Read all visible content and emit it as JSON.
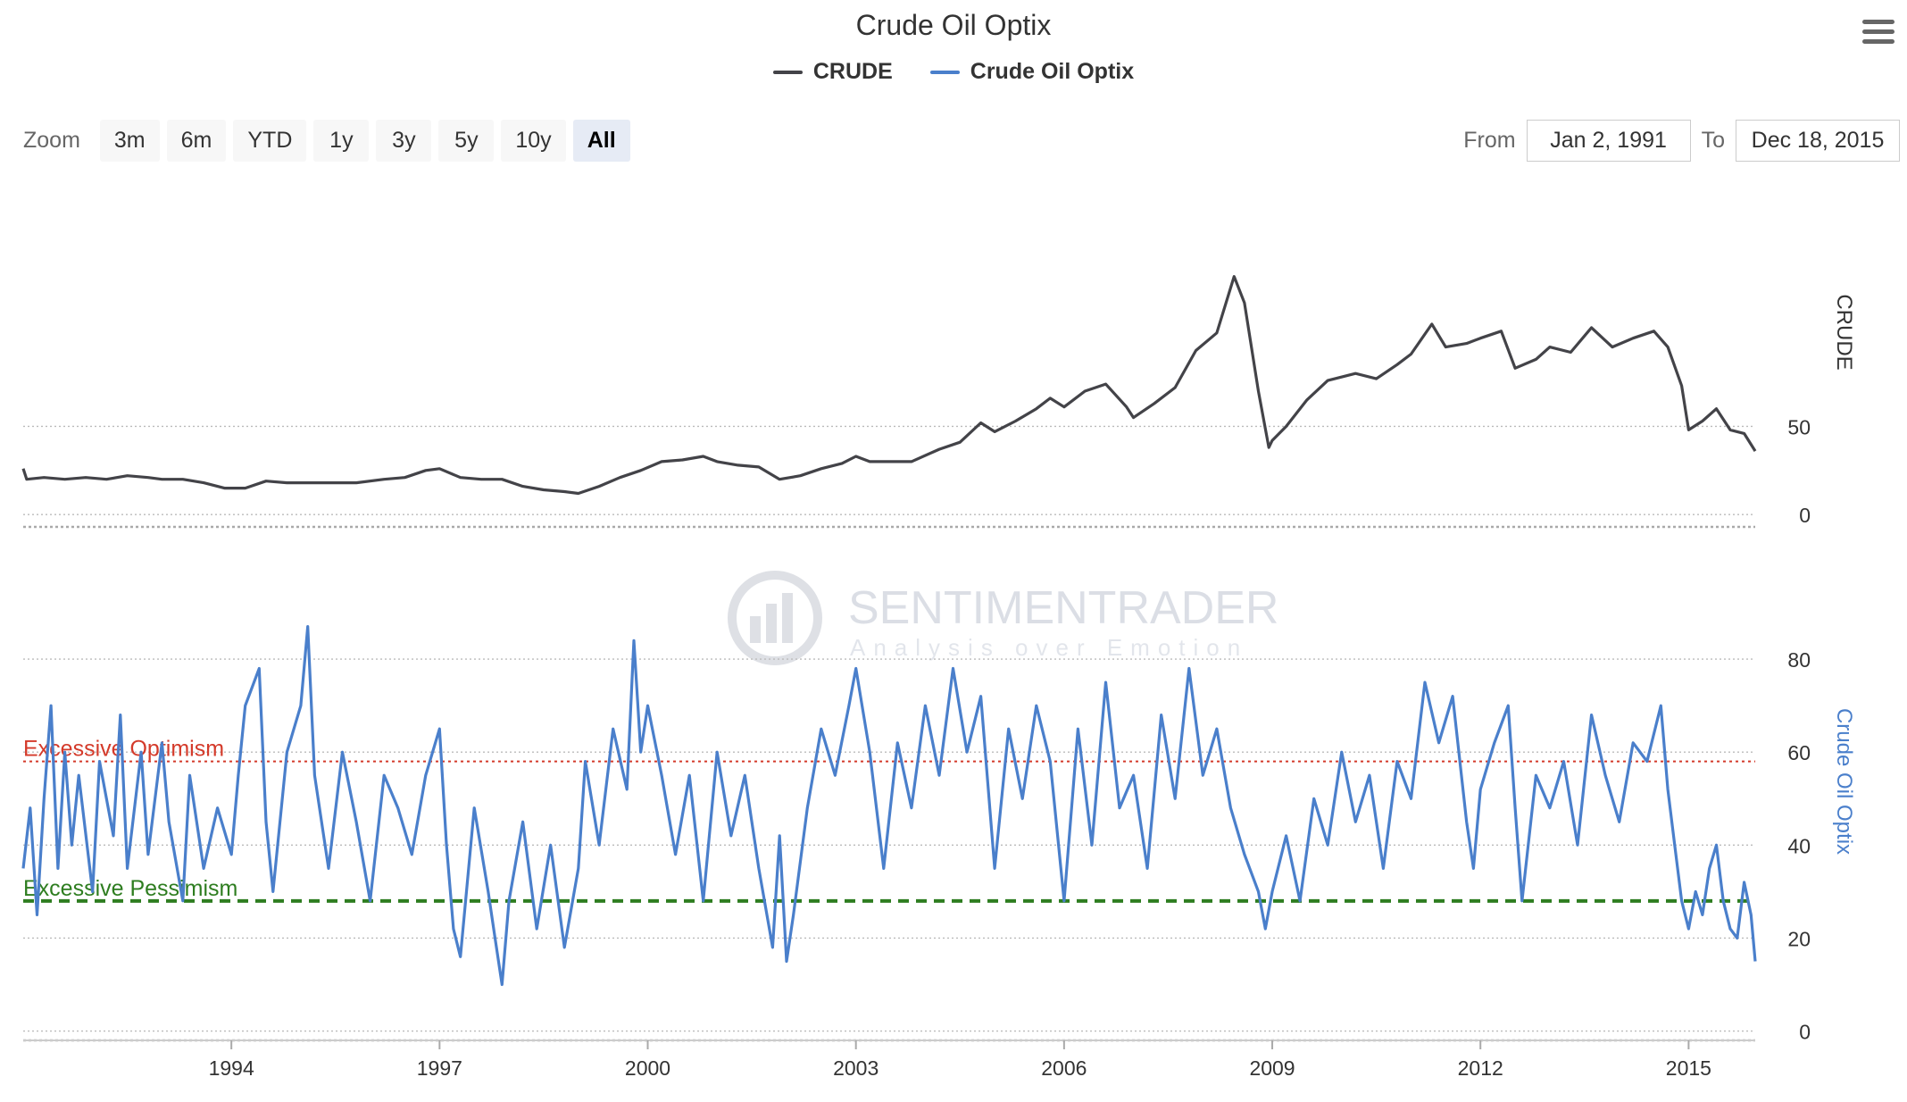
{
  "chart": {
    "title": "Crude Oil Optix",
    "menu_icon": "hamburger-menu-icon"
  },
  "legend": [
    {
      "name": "CRUDE",
      "color": "#434348"
    },
    {
      "name": "Crude Oil Optix",
      "color": "#4a7fcb"
    }
  ],
  "zoom": {
    "label": "Zoom",
    "buttons": [
      "3m",
      "6m",
      "YTD",
      "1y",
      "3y",
      "5y",
      "10y",
      "All"
    ],
    "active": "All"
  },
  "range": {
    "from_label": "From",
    "from_value": "Jan 2, 1991",
    "to_label": "To",
    "to_value": "Dec 18, 2015"
  },
  "watermark": {
    "line1": "SENTIMENTRADER",
    "line2": "Analysis over Emotion"
  },
  "chart_data": [
    {
      "type": "line",
      "series": [
        {
          "name": "CRUDE",
          "color": "#434348"
        }
      ],
      "ylabel": "CRUDE",
      "y_ticks": [
        0,
        50
      ],
      "ylim": [
        -7,
        150
      ],
      "points": [
        [
          1991.0,
          26
        ],
        [
          1991.05,
          20
        ],
        [
          1991.3,
          21
        ],
        [
          1991.6,
          20
        ],
        [
          1991.9,
          21
        ],
        [
          1992.2,
          20
        ],
        [
          1992.5,
          22
        ],
        [
          1992.8,
          21
        ],
        [
          1993.0,
          20
        ],
        [
          1993.3,
          20
        ],
        [
          1993.6,
          18
        ],
        [
          1993.9,
          15
        ],
        [
          1994.2,
          15
        ],
        [
          1994.5,
          19
        ],
        [
          1994.8,
          18
        ],
        [
          1995.2,
          18
        ],
        [
          1995.5,
          18
        ],
        [
          1995.8,
          18
        ],
        [
          1996.2,
          20
        ],
        [
          1996.5,
          21
        ],
        [
          1996.8,
          25
        ],
        [
          1997.0,
          26
        ],
        [
          1997.3,
          21
        ],
        [
          1997.6,
          20
        ],
        [
          1997.9,
          20
        ],
        [
          1998.2,
          16
        ],
        [
          1998.5,
          14
        ],
        [
          1998.8,
          13
        ],
        [
          1999.0,
          12
        ],
        [
          1999.3,
          16
        ],
        [
          1999.6,
          21
        ],
        [
          1999.9,
          25
        ],
        [
          2000.2,
          30
        ],
        [
          2000.5,
          31
        ],
        [
          2000.8,
          33
        ],
        [
          2001.0,
          30
        ],
        [
          2001.3,
          28
        ],
        [
          2001.6,
          27
        ],
        [
          2001.9,
          20
        ],
        [
          2002.2,
          22
        ],
        [
          2002.5,
          26
        ],
        [
          2002.8,
          29
        ],
        [
          2003.0,
          33
        ],
        [
          2003.2,
          30
        ],
        [
          2003.5,
          30
        ],
        [
          2003.8,
          30
        ],
        [
          2004.2,
          37
        ],
        [
          2004.5,
          41
        ],
        [
          2004.8,
          52
        ],
        [
          2005.0,
          47
        ],
        [
          2005.3,
          53
        ],
        [
          2005.6,
          60
        ],
        [
          2005.8,
          66
        ],
        [
          2006.0,
          61
        ],
        [
          2006.3,
          70
        ],
        [
          2006.6,
          74
        ],
        [
          2006.9,
          61
        ],
        [
          2007.0,
          55
        ],
        [
          2007.3,
          63
        ],
        [
          2007.6,
          72
        ],
        [
          2007.9,
          93
        ],
        [
          2008.2,
          103
        ],
        [
          2008.45,
          135
        ],
        [
          2008.6,
          120
        ],
        [
          2008.8,
          70
        ],
        [
          2008.95,
          38
        ],
        [
          2009.0,
          42
        ],
        [
          2009.2,
          50
        ],
        [
          2009.5,
          65
        ],
        [
          2009.8,
          76
        ],
        [
          2010.2,
          80
        ],
        [
          2010.5,
          77
        ],
        [
          2010.8,
          85
        ],
        [
          2011.0,
          91
        ],
        [
          2011.3,
          108
        ],
        [
          2011.5,
          95
        ],
        [
          2011.8,
          97
        ],
        [
          2012.0,
          100
        ],
        [
          2012.3,
          104
        ],
        [
          2012.5,
          83
        ],
        [
          2012.8,
          88
        ],
        [
          2013.0,
          95
        ],
        [
          2013.3,
          92
        ],
        [
          2013.6,
          106
        ],
        [
          2013.9,
          95
        ],
        [
          2014.2,
          100
        ],
        [
          2014.5,
          104
        ],
        [
          2014.7,
          95
        ],
        [
          2014.9,
          73
        ],
        [
          2015.0,
          48
        ],
        [
          2015.2,
          53
        ],
        [
          2015.4,
          60
        ],
        [
          2015.6,
          48
        ],
        [
          2015.8,
          46
        ],
        [
          2015.96,
          36
        ]
      ]
    },
    {
      "type": "line",
      "series": [
        {
          "name": "Crude Oil Optix",
          "color": "#4a7fcb"
        }
      ],
      "ylabel": "Crude Oil Optix",
      "y_ticks": [
        0,
        20,
        40,
        60,
        80
      ],
      "ylim": [
        -2,
        95
      ],
      "annotations": [
        {
          "label": "Excessive Optimism",
          "value": 58,
          "color": "#d43a2a"
        },
        {
          "label": "Excessive Pessimism",
          "value": 28,
          "color": "#2e7d20"
        }
      ],
      "points": [
        [
          1991.0,
          35
        ],
        [
          1991.1,
          48
        ],
        [
          1991.2,
          25
        ],
        [
          1991.3,
          50
        ],
        [
          1991.4,
          70
        ],
        [
          1991.5,
          35
        ],
        [
          1991.6,
          60
        ],
        [
          1991.7,
          40
        ],
        [
          1991.8,
          55
        ],
        [
          1992.0,
          30
        ],
        [
          1992.1,
          58
        ],
        [
          1992.3,
          42
        ],
        [
          1992.4,
          68
        ],
        [
          1992.5,
          35
        ],
        [
          1992.7,
          60
        ],
        [
          1992.8,
          38
        ],
        [
          1993.0,
          62
        ],
        [
          1993.1,
          45
        ],
        [
          1993.3,
          28
        ],
        [
          1993.4,
          55
        ],
        [
          1993.6,
          35
        ],
        [
          1993.8,
          48
        ],
        [
          1994.0,
          38
        ],
        [
          1994.1,
          55
        ],
        [
          1994.2,
          70
        ],
        [
          1994.4,
          78
        ],
        [
          1994.5,
          45
        ],
        [
          1994.6,
          30
        ],
        [
          1994.8,
          60
        ],
        [
          1995.0,
          70
        ],
        [
          1995.1,
          87
        ],
        [
          1995.2,
          55
        ],
        [
          1995.4,
          35
        ],
        [
          1995.6,
          60
        ],
        [
          1995.8,
          45
        ],
        [
          1996.0,
          28
        ],
        [
          1996.2,
          55
        ],
        [
          1996.4,
          48
        ],
        [
          1996.6,
          38
        ],
        [
          1996.8,
          55
        ],
        [
          1997.0,
          65
        ],
        [
          1997.1,
          40
        ],
        [
          1997.2,
          22
        ],
        [
          1997.3,
          16
        ],
        [
          1997.5,
          48
        ],
        [
          1997.7,
          30
        ],
        [
          1997.8,
          20
        ],
        [
          1997.9,
          10
        ],
        [
          1998.0,
          28
        ],
        [
          1998.2,
          45
        ],
        [
          1998.4,
          22
        ],
        [
          1998.6,
          40
        ],
        [
          1998.8,
          18
        ],
        [
          1999.0,
          35
        ],
        [
          1999.1,
          58
        ],
        [
          1999.3,
          40
        ],
        [
          1999.5,
          65
        ],
        [
          1999.7,
          52
        ],
        [
          1999.8,
          84
        ],
        [
          1999.9,
          60
        ],
        [
          2000.0,
          70
        ],
        [
          2000.2,
          55
        ],
        [
          2000.4,
          38
        ],
        [
          2000.6,
          55
        ],
        [
          2000.8,
          28
        ],
        [
          2001.0,
          60
        ],
        [
          2001.2,
          42
        ],
        [
          2001.4,
          55
        ],
        [
          2001.6,
          35
        ],
        [
          2001.8,
          18
        ],
        [
          2001.9,
          42
        ],
        [
          2002.0,
          15
        ],
        [
          2002.1,
          25
        ],
        [
          2002.3,
          48
        ],
        [
          2002.5,
          65
        ],
        [
          2002.7,
          55
        ],
        [
          2002.9,
          70
        ],
        [
          2003.0,
          78
        ],
        [
          2003.2,
          60
        ],
        [
          2003.4,
          35
        ],
        [
          2003.6,
          62
        ],
        [
          2003.8,
          48
        ],
        [
          2004.0,
          70
        ],
        [
          2004.2,
          55
        ],
        [
          2004.4,
          78
        ],
        [
          2004.6,
          60
        ],
        [
          2004.8,
          72
        ],
        [
          2005.0,
          35
        ],
        [
          2005.2,
          65
        ],
        [
          2005.4,
          50
        ],
        [
          2005.6,
          70
        ],
        [
          2005.8,
          58
        ],
        [
          2006.0,
          28
        ],
        [
          2006.2,
          65
        ],
        [
          2006.4,
          40
        ],
        [
          2006.6,
          75
        ],
        [
          2006.8,
          48
        ],
        [
          2007.0,
          55
        ],
        [
          2007.2,
          35
        ],
        [
          2007.4,
          68
        ],
        [
          2007.6,
          50
        ],
        [
          2007.8,
          78
        ],
        [
          2008.0,
          55
        ],
        [
          2008.2,
          65
        ],
        [
          2008.4,
          48
        ],
        [
          2008.6,
          38
        ],
        [
          2008.8,
          30
        ],
        [
          2008.9,
          22
        ],
        [
          2009.0,
          30
        ],
        [
          2009.2,
          42
        ],
        [
          2009.4,
          28
        ],
        [
          2009.6,
          50
        ],
        [
          2009.8,
          40
        ],
        [
          2010.0,
          60
        ],
        [
          2010.2,
          45
        ],
        [
          2010.4,
          55
        ],
        [
          2010.6,
          35
        ],
        [
          2010.8,
          58
        ],
        [
          2011.0,
          50
        ],
        [
          2011.2,
          75
        ],
        [
          2011.4,
          62
        ],
        [
          2011.6,
          72
        ],
        [
          2011.8,
          45
        ],
        [
          2011.9,
          35
        ],
        [
          2012.0,
          52
        ],
        [
          2012.2,
          62
        ],
        [
          2012.4,
          70
        ],
        [
          2012.5,
          48
        ],
        [
          2012.6,
          28
        ],
        [
          2012.8,
          55
        ],
        [
          2013.0,
          48
        ],
        [
          2013.2,
          58
        ],
        [
          2013.4,
          40
        ],
        [
          2013.6,
          68
        ],
        [
          2013.8,
          55
        ],
        [
          2014.0,
          45
        ],
        [
          2014.2,
          62
        ],
        [
          2014.4,
          58
        ],
        [
          2014.6,
          70
        ],
        [
          2014.7,
          52
        ],
        [
          2014.8,
          40
        ],
        [
          2014.9,
          28
        ],
        [
          2015.0,
          22
        ],
        [
          2015.1,
          30
        ],
        [
          2015.2,
          25
        ],
        [
          2015.3,
          35
        ],
        [
          2015.4,
          40
        ],
        [
          2015.5,
          28
        ],
        [
          2015.6,
          22
        ],
        [
          2015.7,
          20
        ],
        [
          2015.8,
          32
        ],
        [
          2015.9,
          25
        ],
        [
          2015.96,
          15
        ]
      ]
    }
  ],
  "x_axis": {
    "tick_years": [
      "1994",
      "1997",
      "2000",
      "2003",
      "2006",
      "2009",
      "2012",
      "2015"
    ],
    "range": [
      1991.0,
      2015.96
    ]
  }
}
